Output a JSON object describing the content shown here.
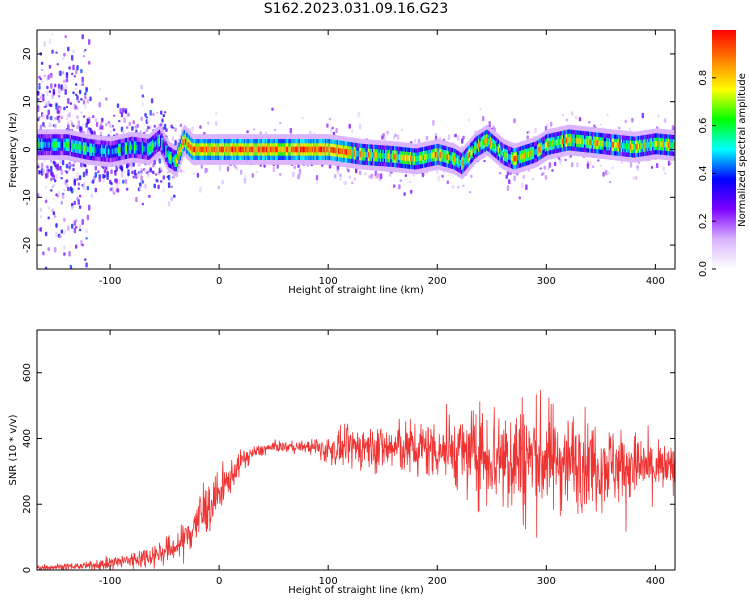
{
  "page": {
    "title": "S162.2023.031.09.16.G23"
  },
  "chart_data": [
    {
      "type": "heatmap",
      "xlabel": "Height of straight line (km)",
      "ylabel": "Frequency (Hz)",
      "xlim": [
        -167,
        418
      ],
      "ylim": [
        -25,
        25
      ],
      "xticks": [
        -100,
        0,
        100,
        200,
        300,
        400
      ],
      "yticks": [
        -20,
        -10,
        0,
        10,
        20
      ],
      "colorbar": {
        "label": "Normalized spectral amplitude",
        "range": [
          0,
          1
        ],
        "ticks": [
          "0.0",
          "0.2",
          "0.4",
          "0.6",
          "0.8"
        ],
        "colormap": [
          "#ffffff",
          "#d9b3ff",
          "#7f00ff",
          "#0000ff",
          "#00ffff",
          "#00ff00",
          "#ffff00",
          "#ff8000",
          "#ff0000"
        ]
      },
      "ridge": {
        "x": [
          -140,
          -120,
          -100,
          -80,
          -65,
          -55,
          -47,
          -40,
          -33,
          -25,
          0,
          50,
          100,
          130,
          160,
          180,
          200,
          215,
          222,
          235,
          245,
          260,
          270,
          290,
          300,
          320,
          340,
          360,
          380,
          400,
          418
        ],
        "y": [
          1,
          0,
          -0.5,
          0.5,
          0,
          2,
          -1.5,
          -2.5,
          2,
          0,
          0,
          0,
          0,
          -1,
          -1.5,
          -2,
          -1,
          -2,
          -3,
          0.5,
          2,
          -1,
          -2,
          -0.5,
          1,
          2,
          1.5,
          1,
          0.5,
          1.2,
          0.8
        ]
      },
      "grid": false
    },
    {
      "type": "line",
      "xlabel": "Height of straight line (km)",
      "ylabel": "SNR (10 * v/v)",
      "xlim": [
        -167,
        418
      ],
      "ylim": [
        0,
        730
      ],
      "xticks": [
        -100,
        0,
        100,
        200,
        300,
        400
      ],
      "yticks": [
        0,
        200,
        400,
        600
      ],
      "color": "#ee3333",
      "envelope": {
        "x": [
          -167,
          -120,
          -80,
          -50,
          -35,
          -20,
          0,
          10,
          20,
          30,
          50,
          80,
          100,
          130,
          160,
          200,
          230,
          250,
          280,
          300,
          330,
          360,
          400,
          418
        ],
        "mean": [
          8,
          12,
          30,
          55,
          80,
          150,
          230,
          280,
          330,
          355,
          375,
          375,
          365,
          375,
          370,
          370,
          355,
          350,
          340,
          340,
          330,
          320,
          310,
          305
        ],
        "spread": [
          8,
          10,
          25,
          35,
          45,
          80,
          60,
          45,
          30,
          20,
          14,
          16,
          40,
          60,
          70,
          85,
          110,
          150,
          170,
          150,
          130,
          110,
          80,
          60
        ]
      },
      "grid": false
    }
  ]
}
